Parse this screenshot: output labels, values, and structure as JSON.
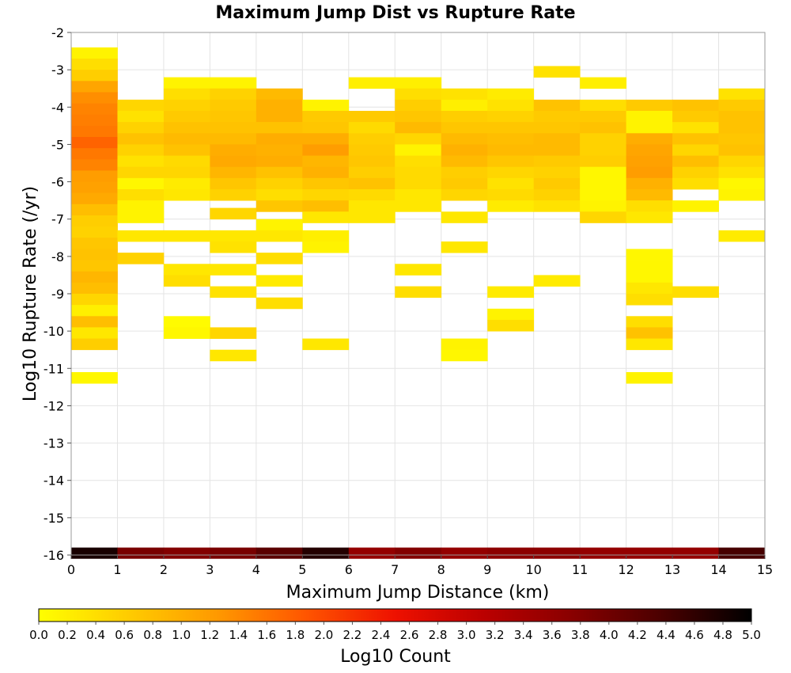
{
  "chart_data": {
    "type": "heatmap",
    "title": "Maximum Jump Dist vs Rupture Rate",
    "xlabel": "Maximum Jump Distance (km)",
    "ylabel": "Log10 Rupture Rate (/yr)",
    "xlim": [
      0,
      15
    ],
    "ylim": [
      -16,
      -2
    ],
    "xbin_width": 1,
    "ybin_height": 0.3,
    "x_ticks": [
      "0",
      "1",
      "2",
      "3",
      "4",
      "5",
      "6",
      "7",
      "8",
      "9",
      "10",
      "11",
      "12",
      "13",
      "14",
      "15"
    ],
    "y_ticks": [
      "-2",
      "-3",
      "-4",
      "-5",
      "-6",
      "-7",
      "-8",
      "-9",
      "-10",
      "-11",
      "-12",
      "-13",
      "-14",
      "-15",
      "-16"
    ],
    "grid": true,
    "colorbar": {
      "label": "Log10 Count",
      "range": [
        0,
        5
      ],
      "ticks": [
        "0.0",
        "0.2",
        "0.4",
        "0.6",
        "0.8",
        "1.0",
        "1.2",
        "1.4",
        "1.6",
        "1.8",
        "2.0",
        "2.2",
        "2.4",
        "2.6",
        "2.8",
        "3.0",
        "3.2",
        "3.4",
        "3.6",
        "3.8",
        "4.0",
        "4.2",
        "4.4",
        "4.6",
        "4.8",
        "5.0"
      ],
      "stops": [
        "#ffff00",
        "#ffcc00",
        "#ff9900",
        "#ff5500",
        "#ee1100",
        "#bb0000",
        "#880000",
        "#4a0000",
        "#000000"
      ]
    },
    "cells": [
      {
        "x": 0,
        "y": -2.55,
        "v": 0.15
      },
      {
        "x": 0,
        "y": -2.85,
        "v": 0.4
      },
      {
        "x": 0,
        "y": -3.15,
        "v": 0.6
      },
      {
        "x": 0,
        "y": -3.45,
        "v": 1.1
      },
      {
        "x": 0,
        "y": -3.75,
        "v": 1.35
      },
      {
        "x": 0,
        "y": -4.05,
        "v": 1.45
      },
      {
        "x": 0,
        "y": -4.35,
        "v": 1.5
      },
      {
        "x": 0,
        "y": -4.65,
        "v": 1.55
      },
      {
        "x": 0,
        "y": -4.95,
        "v": 1.75
      },
      {
        "x": 0,
        "y": -5.25,
        "v": 1.55
      },
      {
        "x": 0,
        "y": -5.55,
        "v": 1.45
      },
      {
        "x": 0,
        "y": -5.85,
        "v": 1.2
      },
      {
        "x": 0,
        "y": -6.15,
        "v": 1.15
      },
      {
        "x": 0,
        "y": -6.45,
        "v": 1.05
      },
      {
        "x": 0,
        "y": -6.75,
        "v": 0.8
      },
      {
        "x": 0,
        "y": -7.05,
        "v": 0.6
      },
      {
        "x": 0,
        "y": -7.35,
        "v": 0.55
      },
      {
        "x": 0,
        "y": -7.65,
        "v": 0.7
      },
      {
        "x": 0,
        "y": -7.95,
        "v": 0.75
      },
      {
        "x": 0,
        "y": -8.25,
        "v": 0.7
      },
      {
        "x": 0,
        "y": -8.55,
        "v": 0.9
      },
      {
        "x": 0,
        "y": -8.85,
        "v": 0.8
      },
      {
        "x": 0,
        "y": -9.15,
        "v": 0.5
      },
      {
        "x": 0,
        "y": -9.45,
        "v": 0.2
      },
      {
        "x": 0,
        "y": -9.75,
        "v": 0.8
      },
      {
        "x": 0,
        "y": -10.05,
        "v": 0.3
      },
      {
        "x": 0,
        "y": -10.35,
        "v": 0.6
      },
      {
        "x": 0,
        "y": -11.25,
        "v": 0.1
      },
      {
        "x": 1,
        "y": -3.95,
        "v": 0.5
      },
      {
        "x": 1,
        "y": -4.25,
        "v": 0.35
      },
      {
        "x": 1,
        "y": -4.55,
        "v": 0.55
      },
      {
        "x": 1,
        "y": -4.85,
        "v": 0.75
      },
      {
        "x": 1,
        "y": -5.15,
        "v": 0.55
      },
      {
        "x": 1,
        "y": -5.45,
        "v": 0.35
      },
      {
        "x": 1,
        "y": -5.75,
        "v": 0.5
      },
      {
        "x": 1,
        "y": -6.05,
        "v": 0.1
      },
      {
        "x": 1,
        "y": -6.35,
        "v": 0.4
      },
      {
        "x": 1,
        "y": -6.65,
        "v": 0.15
      },
      {
        "x": 1,
        "y": -6.95,
        "v": 0.15
      },
      {
        "x": 1,
        "y": -7.45,
        "v": 0.3
      },
      {
        "x": 1,
        "y": -8.05,
        "v": 0.55
      },
      {
        "x": 2,
        "y": -3.35,
        "v": 0.15
      },
      {
        "x": 2,
        "y": -3.65,
        "v": 0.4
      },
      {
        "x": 2,
        "y": -3.95,
        "v": 0.55
      },
      {
        "x": 2,
        "y": -4.25,
        "v": 0.65
      },
      {
        "x": 2,
        "y": -4.55,
        "v": 0.75
      },
      {
        "x": 2,
        "y": -4.85,
        "v": 0.85
      },
      {
        "x": 2,
        "y": -5.15,
        "v": 0.75
      },
      {
        "x": 2,
        "y": -5.45,
        "v": 0.45
      },
      {
        "x": 2,
        "y": -5.75,
        "v": 0.5
      },
      {
        "x": 2,
        "y": -6.05,
        "v": 0.25
      },
      {
        "x": 2,
        "y": -6.35,
        "v": 0.3
      },
      {
        "x": 2,
        "y": -7.45,
        "v": 0.3
      },
      {
        "x": 2,
        "y": -8.35,
        "v": 0.3
      },
      {
        "x": 2,
        "y": -8.65,
        "v": 0.4
      },
      {
        "x": 2,
        "y": -9.75,
        "v": 0.05
      },
      {
        "x": 2,
        "y": -10.05,
        "v": 0.1
      },
      {
        "x": 3,
        "y": -3.35,
        "v": 0.15
      },
      {
        "x": 3,
        "y": -3.65,
        "v": 0.55
      },
      {
        "x": 3,
        "y": -3.95,
        "v": 0.65
      },
      {
        "x": 3,
        "y": -4.25,
        "v": 0.7
      },
      {
        "x": 3,
        "y": -4.55,
        "v": 0.75
      },
      {
        "x": 3,
        "y": -4.85,
        "v": 0.85
      },
      {
        "x": 3,
        "y": -5.15,
        "v": 1.0
      },
      {
        "x": 3,
        "y": -5.45,
        "v": 1.05
      },
      {
        "x": 3,
        "y": -5.75,
        "v": 0.9
      },
      {
        "x": 3,
        "y": -6.05,
        "v": 0.7
      },
      {
        "x": 3,
        "y": -6.35,
        "v": 0.55
      },
      {
        "x": 3,
        "y": -6.85,
        "v": 0.5
      },
      {
        "x": 3,
        "y": -7.45,
        "v": 0.3
      },
      {
        "x": 3,
        "y": -7.75,
        "v": 0.35
      },
      {
        "x": 3,
        "y": -8.35,
        "v": 0.3
      },
      {
        "x": 3,
        "y": -8.95,
        "v": 0.35
      },
      {
        "x": 3,
        "y": -10.05,
        "v": 0.5
      },
      {
        "x": 3,
        "y": -10.65,
        "v": 0.3
      },
      {
        "x": 4,
        "y": -3.65,
        "v": 0.85
      },
      {
        "x": 4,
        "y": -3.95,
        "v": 0.95
      },
      {
        "x": 4,
        "y": -4.25,
        "v": 0.95
      },
      {
        "x": 4,
        "y": -4.55,
        "v": 0.75
      },
      {
        "x": 4,
        "y": -4.85,
        "v": 1.0
      },
      {
        "x": 4,
        "y": -5.15,
        "v": 0.95
      },
      {
        "x": 4,
        "y": -5.45,
        "v": 1.0
      },
      {
        "x": 4,
        "y": -5.75,
        "v": 0.75
      },
      {
        "x": 4,
        "y": -6.05,
        "v": 0.55
      },
      {
        "x": 4,
        "y": -6.35,
        "v": 0.4
      },
      {
        "x": 4,
        "y": -6.65,
        "v": 0.7
      },
      {
        "x": 4,
        "y": -7.15,
        "v": 0.15
      },
      {
        "x": 4,
        "y": -7.45,
        "v": 0.3
      },
      {
        "x": 4,
        "y": -8.05,
        "v": 0.4
      },
      {
        "x": 4,
        "y": -8.65,
        "v": 0.25
      },
      {
        "x": 4,
        "y": -9.25,
        "v": 0.4
      },
      {
        "x": 5,
        "y": -3.95,
        "v": 0.15
      },
      {
        "x": 5,
        "y": -4.25,
        "v": 0.65
      },
      {
        "x": 5,
        "y": -4.55,
        "v": 0.7
      },
      {
        "x": 5,
        "y": -4.85,
        "v": 1.0
      },
      {
        "x": 5,
        "y": -5.15,
        "v": 1.2
      },
      {
        "x": 5,
        "y": -5.45,
        "v": 0.9
      },
      {
        "x": 5,
        "y": -5.75,
        "v": 0.95
      },
      {
        "x": 5,
        "y": -6.05,
        "v": 0.7
      },
      {
        "x": 5,
        "y": -6.35,
        "v": 0.5
      },
      {
        "x": 5,
        "y": -6.65,
        "v": 0.8
      },
      {
        "x": 5,
        "y": -6.95,
        "v": 0.3
      },
      {
        "x": 5,
        "y": -7.45,
        "v": 0.2
      },
      {
        "x": 5,
        "y": -7.75,
        "v": 0.15
      },
      {
        "x": 5,
        "y": -10.35,
        "v": 0.3
      },
      {
        "x": 6,
        "y": -3.35,
        "v": 0.2
      },
      {
        "x": 6,
        "y": -4.25,
        "v": 0.65
      },
      {
        "x": 6,
        "y": -4.55,
        "v": 0.45
      },
      {
        "x": 6,
        "y": -4.85,
        "v": 0.6
      },
      {
        "x": 6,
        "y": -5.15,
        "v": 0.65
      },
      {
        "x": 6,
        "y": -5.45,
        "v": 0.7
      },
      {
        "x": 6,
        "y": -5.75,
        "v": 0.6
      },
      {
        "x": 6,
        "y": -6.05,
        "v": 0.75
      },
      {
        "x": 6,
        "y": -6.35,
        "v": 0.45
      },
      {
        "x": 6,
        "y": -6.65,
        "v": 0.3
      },
      {
        "x": 6,
        "y": -6.95,
        "v": 0.3
      },
      {
        "x": 7,
        "y": -3.35,
        "v": 0.2
      },
      {
        "x": 7,
        "y": -3.65,
        "v": 0.4
      },
      {
        "x": 7,
        "y": -3.95,
        "v": 0.6
      },
      {
        "x": 7,
        "y": -4.25,
        "v": 0.7
      },
      {
        "x": 7,
        "y": -4.55,
        "v": 0.85
      },
      {
        "x": 7,
        "y": -4.85,
        "v": 0.5
      },
      {
        "x": 7,
        "y": -5.15,
        "v": 0.15
      },
      {
        "x": 7,
        "y": -5.45,
        "v": 0.4
      },
      {
        "x": 7,
        "y": -5.75,
        "v": 0.45
      },
      {
        "x": 7,
        "y": -6.05,
        "v": 0.45
      },
      {
        "x": 7,
        "y": -6.35,
        "v": 0.3
      },
      {
        "x": 7,
        "y": -6.65,
        "v": 0.3
      },
      {
        "x": 7,
        "y": -8.35,
        "v": 0.3
      },
      {
        "x": 7,
        "y": -8.95,
        "v": 0.4
      },
      {
        "x": 8,
        "y": -3.65,
        "v": 0.35
      },
      {
        "x": 8,
        "y": -3.95,
        "v": 0.2
      },
      {
        "x": 8,
        "y": -4.25,
        "v": 0.6
      },
      {
        "x": 8,
        "y": -4.55,
        "v": 0.7
      },
      {
        "x": 8,
        "y": -4.85,
        "v": 0.85
      },
      {
        "x": 8,
        "y": -5.15,
        "v": 0.95
      },
      {
        "x": 8,
        "y": -5.45,
        "v": 0.85
      },
      {
        "x": 8,
        "y": -5.75,
        "v": 0.6
      },
      {
        "x": 8,
        "y": -6.05,
        "v": 0.65
      },
      {
        "x": 8,
        "y": -6.35,
        "v": 0.5
      },
      {
        "x": 8,
        "y": -6.95,
        "v": 0.3
      },
      {
        "x": 8,
        "y": -7.75,
        "v": 0.3
      },
      {
        "x": 8,
        "y": -10.35,
        "v": 0.15
      },
      {
        "x": 8,
        "y": -10.65,
        "v": 0.1
      },
      {
        "x": 9,
        "y": -3.65,
        "v": 0.25
      },
      {
        "x": 9,
        "y": -3.95,
        "v": 0.35
      },
      {
        "x": 9,
        "y": -4.25,
        "v": 0.55
      },
      {
        "x": 9,
        "y": -4.55,
        "v": 0.7
      },
      {
        "x": 9,
        "y": -4.85,
        "v": 0.8
      },
      {
        "x": 9,
        "y": -5.15,
        "v": 0.85
      },
      {
        "x": 9,
        "y": -5.45,
        "v": 0.7
      },
      {
        "x": 9,
        "y": -5.75,
        "v": 0.5
      },
      {
        "x": 9,
        "y": -6.05,
        "v": 0.35
      },
      {
        "x": 9,
        "y": -6.35,
        "v": 0.45
      },
      {
        "x": 9,
        "y": -6.65,
        "v": 0.25
      },
      {
        "x": 9,
        "y": -8.95,
        "v": 0.25
      },
      {
        "x": 9,
        "y": -9.55,
        "v": 0.15
      },
      {
        "x": 9,
        "y": -9.85,
        "v": 0.4
      },
      {
        "x": 10,
        "y": -3.05,
        "v": 0.35
      },
      {
        "x": 10,
        "y": -3.95,
        "v": 0.75
      },
      {
        "x": 10,
        "y": -4.25,
        "v": 0.65
      },
      {
        "x": 10,
        "y": -4.55,
        "v": 0.7
      },
      {
        "x": 10,
        "y": -4.85,
        "v": 0.85
      },
      {
        "x": 10,
        "y": -5.15,
        "v": 0.85
      },
      {
        "x": 10,
        "y": -5.45,
        "v": 0.65
      },
      {
        "x": 10,
        "y": -5.75,
        "v": 0.55
      },
      {
        "x": 10,
        "y": -6.05,
        "v": 0.65
      },
      {
        "x": 10,
        "y": -6.35,
        "v": 0.55
      },
      {
        "x": 10,
        "y": -6.65,
        "v": 0.35
      },
      {
        "x": 10,
        "y": -8.65,
        "v": 0.25
      },
      {
        "x": 11,
        "y": -3.35,
        "v": 0.2
      },
      {
        "x": 11,
        "y": -3.95,
        "v": 0.4
      },
      {
        "x": 11,
        "y": -4.25,
        "v": 0.65
      },
      {
        "x": 11,
        "y": -4.55,
        "v": 0.75
      },
      {
        "x": 11,
        "y": -4.85,
        "v": 0.55
      },
      {
        "x": 11,
        "y": -5.15,
        "v": 0.55
      },
      {
        "x": 11,
        "y": -5.45,
        "v": 0.6
      },
      {
        "x": 11,
        "y": -5.75,
        "v": 0.1
      },
      {
        "x": 11,
        "y": -6.05,
        "v": 0.1
      },
      {
        "x": 11,
        "y": -6.35,
        "v": 0.1
      },
      {
        "x": 11,
        "y": -6.65,
        "v": 0.15
      },
      {
        "x": 11,
        "y": -6.95,
        "v": 0.5
      },
      {
        "x": 12,
        "y": -3.95,
        "v": 0.65
      },
      {
        "x": 12,
        "y": -4.25,
        "v": 0.15
      },
      {
        "x": 12,
        "y": -4.55,
        "v": 0.15
      },
      {
        "x": 12,
        "y": -4.85,
        "v": 1.0
      },
      {
        "x": 12,
        "y": -5.15,
        "v": 1.1
      },
      {
        "x": 12,
        "y": -5.45,
        "v": 1.15
      },
      {
        "x": 12,
        "y": -5.75,
        "v": 1.2
      },
      {
        "x": 12,
        "y": -6.05,
        "v": 0.95
      },
      {
        "x": 12,
        "y": -6.35,
        "v": 0.85
      },
      {
        "x": 12,
        "y": -6.65,
        "v": 0.4
      },
      {
        "x": 12,
        "y": -6.95,
        "v": 0.3
      },
      {
        "x": 12,
        "y": -7.95,
        "v": 0.1
      },
      {
        "x": 12,
        "y": -8.25,
        "v": 0.1
      },
      {
        "x": 12,
        "y": -8.55,
        "v": 0.1
      },
      {
        "x": 12,
        "y": -8.85,
        "v": 0.3
      },
      {
        "x": 12,
        "y": -9.15,
        "v": 0.4
      },
      {
        "x": 12,
        "y": -9.75,
        "v": 0.4
      },
      {
        "x": 12,
        "y": -10.05,
        "v": 0.75
      },
      {
        "x": 12,
        "y": -10.35,
        "v": 0.3
      },
      {
        "x": 12,
        "y": -11.25,
        "v": 0.15
      },
      {
        "x": 13,
        "y": -3.95,
        "v": 0.75
      },
      {
        "x": 13,
        "y": -4.25,
        "v": 0.65
      },
      {
        "x": 13,
        "y": -4.55,
        "v": 0.35
      },
      {
        "x": 13,
        "y": -4.85,
        "v": 0.75
      },
      {
        "x": 13,
        "y": -5.15,
        "v": 0.5
      },
      {
        "x": 13,
        "y": -5.45,
        "v": 0.8
      },
      {
        "x": 13,
        "y": -5.75,
        "v": 0.55
      },
      {
        "x": 13,
        "y": -6.05,
        "v": 0.4
      },
      {
        "x": 13,
        "y": -6.65,
        "v": 0.15
      },
      {
        "x": 13,
        "y": -8.95,
        "v": 0.4
      },
      {
        "x": 14,
        "y": -3.65,
        "v": 0.35
      },
      {
        "x": 14,
        "y": -3.95,
        "v": 0.65
      },
      {
        "x": 14,
        "y": -4.25,
        "v": 0.75
      },
      {
        "x": 14,
        "y": -4.55,
        "v": 0.75
      },
      {
        "x": 14,
        "y": -4.85,
        "v": 0.7
      },
      {
        "x": 14,
        "y": -5.15,
        "v": 0.75
      },
      {
        "x": 14,
        "y": -5.45,
        "v": 0.5
      },
      {
        "x": 14,
        "y": -5.75,
        "v": 0.35
      },
      {
        "x": 14,
        "y": -6.05,
        "v": 0.1
      },
      {
        "x": 14,
        "y": -6.35,
        "v": 0.15
      },
      {
        "x": 14,
        "y": -7.45,
        "v": 0.25
      }
    ],
    "bottom_row": {
      "y": -15.95,
      "values": [
        4.8,
        3.9,
        3.8,
        3.9,
        4.2,
        4.7,
        3.6,
        3.8,
        3.6,
        3.7,
        3.7,
        3.6,
        3.6,
        3.6,
        4.4
      ]
    }
  }
}
